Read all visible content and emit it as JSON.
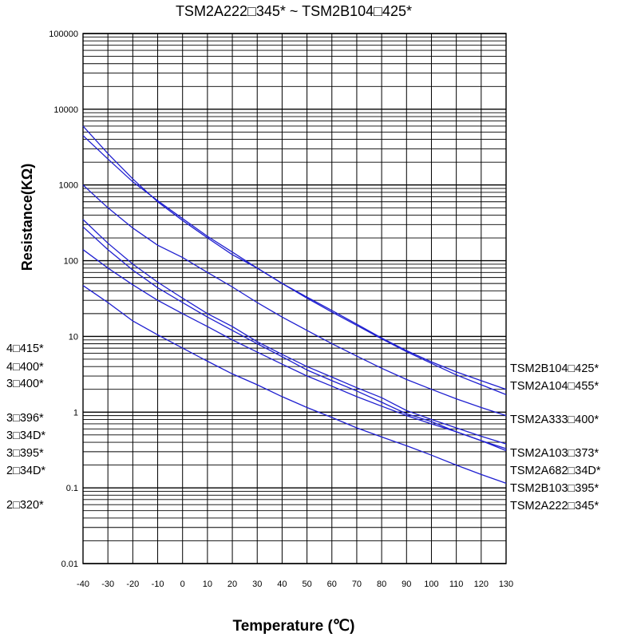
{
  "chart_data": {
    "type": "line",
    "title": "TSM2A222□345* ~ TSM2B104□425*",
    "xlabel": "Temperature (℃)",
    "ylabel": "Resistance(KΩ)",
    "x_scale": "linear",
    "y_scale": "log",
    "xlim": [
      -40,
      130
    ],
    "ylim": [
      0.01,
      100000
    ],
    "x_ticks": [
      "-40",
      "-30",
      "-20",
      "-10",
      "0",
      "10",
      "20",
      "30",
      "40",
      "50",
      "60",
      "70",
      "80",
      "90",
      "100",
      "110",
      "120",
      "130"
    ],
    "y_ticks": [
      "0.01",
      "0.1",
      "1",
      "10",
      "100",
      "1000",
      "10000",
      "100000"
    ],
    "grid": true,
    "line_color": "#1f1fd0",
    "left_labels": [
      "4□415*",
      "4□400*",
      "3□400*",
      "3□396*",
      "3□34D*",
      "3□395*",
      "2□34D*",
      "2□320*"
    ],
    "x": [
      -40,
      -30,
      -20,
      -10,
      0,
      10,
      20,
      30,
      40,
      50,
      60,
      70,
      80,
      90,
      100,
      110,
      120,
      130
    ],
    "series": [
      {
        "name": "TSM2B104□425*",
        "values": [
          6000,
          2600,
          1200,
          600,
          340,
          200,
          120,
          80,
          50,
          33,
          22,
          14.5,
          9.5,
          6.5,
          4.6,
          3.4,
          2.6,
          2.0
        ]
      },
      {
        "name": "TSM2A104□455*",
        "values": [
          4500,
          2200,
          1100,
          620,
          360,
          210,
          130,
          80,
          50,
          32,
          21,
          14,
          9.3,
          6.3,
          4.4,
          3.1,
          2.3,
          1.7
        ]
      },
      {
        "name": "TSM2A333□400*",
        "values": [
          1000,
          500,
          270,
          160,
          110,
          70,
          45,
          28,
          18,
          12,
          8,
          5.5,
          3.8,
          2.7,
          2.0,
          1.5,
          1.15,
          0.9
        ]
      },
      {
        "name": "TSM2A103□373*",
        "values": [
          350,
          170,
          90,
          52,
          32,
          20,
          13.5,
          8.5,
          5.8,
          4.0,
          2.9,
          2.1,
          1.55,
          1.05,
          0.8,
          0.62,
          0.48,
          0.38
        ]
      },
      {
        "name": "TSM2A682□34D*",
        "values": [
          280,
          140,
          75,
          44,
          28,
          18,
          12,
          8,
          5.4,
          3.6,
          2.6,
          1.9,
          1.35,
          0.95,
          0.75,
          0.55,
          0.42,
          0.33
        ]
      },
      {
        "name": "TSM2B103□395*",
        "values": [
          140,
          80,
          48,
          30,
          20,
          13.5,
          9.0,
          6.2,
          4.3,
          3.0,
          2.2,
          1.6,
          1.2,
          0.9,
          0.7,
          0.55,
          0.42,
          0.31
        ]
      },
      {
        "name": "TSM2A222□345*",
        "values": [
          47,
          28,
          16,
          10.5,
          7,
          4.7,
          3.2,
          2.3,
          1.6,
          1.15,
          0.85,
          0.62,
          0.47,
          0.36,
          0.27,
          0.2,
          0.15,
          0.115
        ]
      }
    ],
    "right_labels": [
      "TSM2B104□425*",
      "TSM2A104□455*",
      "TSM2A333□400*",
      "TSM2A103□373*",
      "TSM2A682□34D*",
      "TSM2B103□395*",
      "TSM2A222□345*"
    ]
  }
}
